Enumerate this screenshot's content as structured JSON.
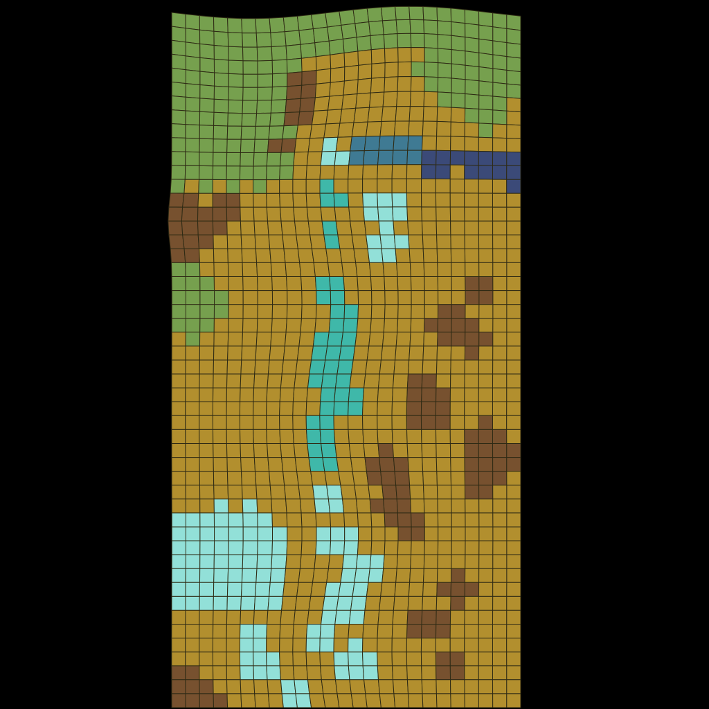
{
  "scene": {
    "background": "#000000",
    "grid_line_color": "#2e2a14",
    "grid": {
      "columns": 25,
      "rows": 50
    }
  },
  "terrain_colors": {
    "grass": "#76a04e",
    "sand": "#b28f2e",
    "dirt": "#77512f",
    "water_light": "#92e0d8",
    "water_mid": "#3fb8a9",
    "water_deep": "#3b4a78",
    "water_steel": "#3f7a93"
  }
}
